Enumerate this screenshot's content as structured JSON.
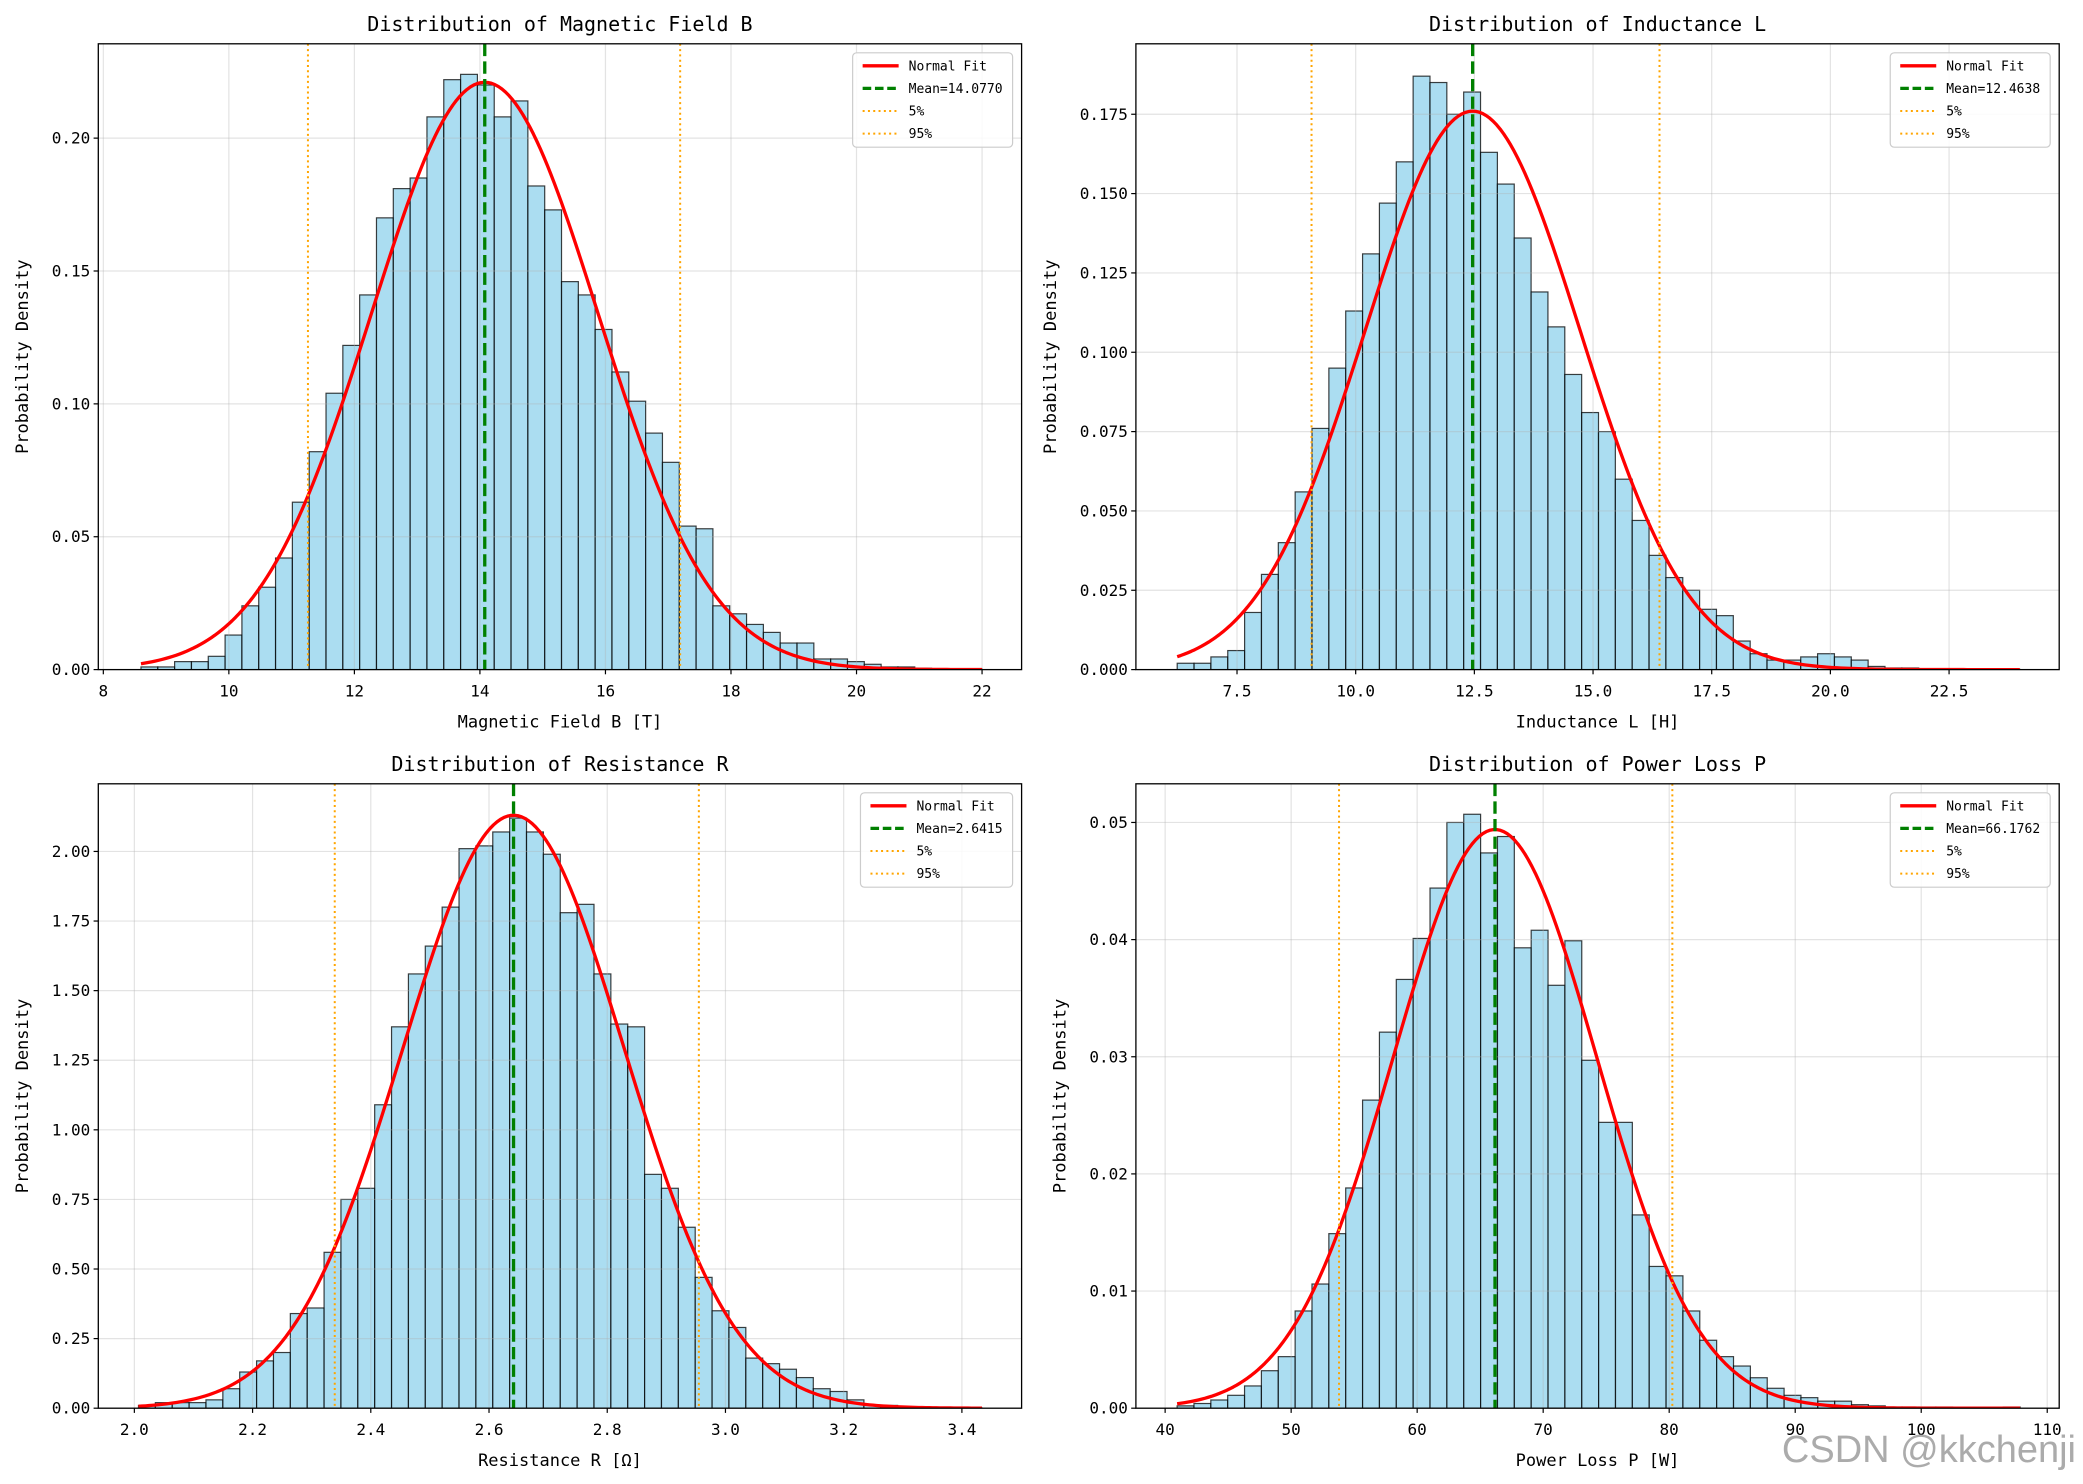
{
  "figure": {
    "background": "#FFFFFF"
  },
  "colors": {
    "bar_fill": "#87CEEB",
    "bar_edge": "#000000",
    "normal_fit": "#FF0000",
    "mean_line": "#008000",
    "percentile_lines": "#FFA500",
    "grid": "#B0B0B0",
    "legend_edge": "#CCCCCC",
    "watermark": "#969696"
  },
  "chart_data": [
    {
      "type": "bar",
      "kind": "histogram",
      "title": "Distribution of Magnetic Field B",
      "xlabel": "Magnetic Field B [T]",
      "ylabel": "Probability Density",
      "xlim": [
        7.92,
        22.63
      ],
      "ylim": [
        0,
        0.2355
      ],
      "x_ticks": [
        "8",
        "10",
        "12",
        "14",
        "16",
        "18",
        "20",
        "22"
      ],
      "y_ticks": [
        "0.00",
        "0.05",
        "0.10",
        "0.15",
        "0.20"
      ],
      "grid": true,
      "bins": {
        "start": 8.6,
        "width": 0.268
      },
      "values": [
        0.001,
        0.001,
        0.003,
        0.003,
        0.005,
        0.013,
        0.024,
        0.031,
        0.042,
        0.063,
        0.082,
        0.104,
        0.122,
        0.141,
        0.17,
        0.181,
        0.185,
        0.208,
        0.222,
        0.224,
        0.22,
        0.208,
        0.214,
        0.182,
        0.173,
        0.146,
        0.141,
        0.128,
        0.112,
        0.101,
        0.089,
        0.078,
        0.054,
        0.053,
        0.024,
        0.021,
        0.017,
        0.014,
        0.01,
        0.01,
        0.004,
        0.004,
        0.003,
        0.002,
        0.001,
        0.001,
        0.0005,
        0.0003,
        0.0003,
        0.0002
      ],
      "normal_fit": {
        "mean": 14.077,
        "std": 1.805,
        "x_range": [
          8.6,
          22.0
        ]
      },
      "mean": 14.077,
      "percentile_5": 11.26,
      "percentile_95": 17.19,
      "legend": {
        "placement": "top-right",
        "entries": [
          "Normal Fit",
          "Mean=14.0770",
          "5%",
          "95%"
        ]
      }
    },
    {
      "type": "bar",
      "kind": "histogram",
      "title": "Distribution of Inductance L",
      "xlabel": "Inductance L [H]",
      "ylabel": "Probability Density",
      "xlim": [
        5.37,
        24.82
      ],
      "ylim": [
        0,
        0.1972
      ],
      "x_ticks": [
        "7.5",
        "10.0",
        "12.5",
        "15.0",
        "17.5",
        "20.0",
        "22.5"
      ],
      "y_ticks": [
        "0.000",
        "0.025",
        "0.050",
        "0.075",
        "0.100",
        "0.125",
        "0.150",
        "0.175"
      ],
      "grid": true,
      "bins": {
        "start": 6.24,
        "width": 0.355
      },
      "values": [
        0.002,
        0.002,
        0.004,
        0.006,
        0.018,
        0.03,
        0.04,
        0.056,
        0.076,
        0.095,
        0.113,
        0.131,
        0.147,
        0.16,
        0.187,
        0.185,
        0.175,
        0.182,
        0.163,
        0.153,
        0.136,
        0.119,
        0.108,
        0.093,
        0.081,
        0.075,
        0.06,
        0.047,
        0.036,
        0.029,
        0.025,
        0.019,
        0.017,
        0.009,
        0.005,
        0.003,
        0.003,
        0.004,
        0.005,
        0.004,
        0.003,
        0.001,
        0.0005,
        0.0005,
        0.0003,
        0.0003,
        0.0002,
        0.0002,
        0.0001,
        0.0001
      ],
      "normal_fit": {
        "mean": 12.4638,
        "std": 2.267,
        "x_range": [
          6.24,
          23.99
        ]
      },
      "mean": 12.4638,
      "percentile_5": 9.07,
      "percentile_95": 16.4,
      "legend": {
        "placement": "top-right",
        "entries": [
          "Normal Fit",
          "Mean=12.4638",
          "5%",
          "95%"
        ]
      }
    },
    {
      "type": "bar",
      "kind": "histogram",
      "title": "Distribution of Resistance R",
      "xlabel": "Resistance R [Ω]",
      "ylabel": "Probability Density",
      "xlim": [
        1.939,
        3.501
      ],
      "ylim": [
        0,
        2.243
      ],
      "x_ticks": [
        "2.0",
        "2.2",
        "2.4",
        "2.6",
        "2.8",
        "3.0",
        "3.2",
        "3.4"
      ],
      "y_ticks": [
        "0.00",
        "0.25",
        "0.50",
        "0.75",
        "1.00",
        "1.25",
        "1.50",
        "1.75",
        "2.00"
      ],
      "grid": true,
      "bins": {
        "start": 2.007,
        "width": 0.02854
      },
      "values": [
        0.01,
        0.02,
        0.02,
        0.02,
        0.03,
        0.07,
        0.13,
        0.17,
        0.2,
        0.34,
        0.36,
        0.56,
        0.75,
        0.79,
        1.09,
        1.37,
        1.56,
        1.66,
        1.8,
        2.01,
        2.02,
        2.07,
        2.12,
        2.07,
        1.99,
        1.78,
        1.81,
        1.56,
        1.38,
        1.37,
        0.84,
        0.79,
        0.65,
        0.47,
        0.35,
        0.29,
        0.18,
        0.16,
        0.14,
        0.11,
        0.07,
        0.06,
        0.03,
        0.01,
        0.01,
        0.005,
        0.003,
        0.003,
        0.002,
        0.001
      ],
      "normal_fit": {
        "mean": 2.6415,
        "std": 0.1873,
        "x_range": [
          2.007,
          3.434
        ]
      },
      "mean": 2.6415,
      "percentile_5": 2.339,
      "percentile_95": 2.955,
      "legend": {
        "placement": "top-right",
        "entries": [
          "Normal Fit",
          "Mean=2.6415",
          "5%",
          "95%"
        ]
      }
    },
    {
      "type": "bar",
      "kind": "histogram",
      "title": "Distribution of Power Loss P",
      "xlabel": "Power Loss P [W]",
      "ylabel": "Probability Density",
      "xlim": [
        37.68,
        110.95
      ],
      "ylim": [
        0,
        0.0533
      ],
      "x_ticks": [
        "40",
        "50",
        "60",
        "70",
        "80",
        "90",
        "100",
        "110"
      ],
      "y_ticks": [
        "0.00",
        "0.01",
        "0.02",
        "0.03",
        "0.04",
        "0.05"
      ],
      "grid": true,
      "bins": {
        "start": 40.95,
        "width": 1.338
      },
      "values": [
        0.0002,
        0.0004,
        0.0007,
        0.0011,
        0.0019,
        0.0032,
        0.0044,
        0.0083,
        0.0106,
        0.0149,
        0.0188,
        0.0263,
        0.0321,
        0.0366,
        0.0401,
        0.0444,
        0.05,
        0.0507,
        0.0474,
        0.0488,
        0.0393,
        0.0408,
        0.0361,
        0.0399,
        0.0297,
        0.0244,
        0.0244,
        0.0165,
        0.0121,
        0.0113,
        0.0083,
        0.0058,
        0.0044,
        0.0036,
        0.0026,
        0.0017,
        0.0011,
        0.0009,
        0.0006,
        0.0006,
        0.0003,
        0.0002,
        0.0001,
        0.0001,
        0.0001,
        0.0001,
        0,
        0,
        0,
        0.0001
      ],
      "normal_fit": {
        "mean": 66.1762,
        "std": 8.076,
        "x_range": [
          40.95,
          107.85
        ]
      },
      "mean": 66.1762,
      "percentile_5": 53.8,
      "percentile_95": 80.25,
      "legend": {
        "placement": "top-right",
        "entries": [
          "Normal Fit",
          "Mean=66.1762",
          "5%",
          "95%"
        ]
      }
    }
  ],
  "watermark": {
    "text": "CSDN @kkchenji"
  }
}
